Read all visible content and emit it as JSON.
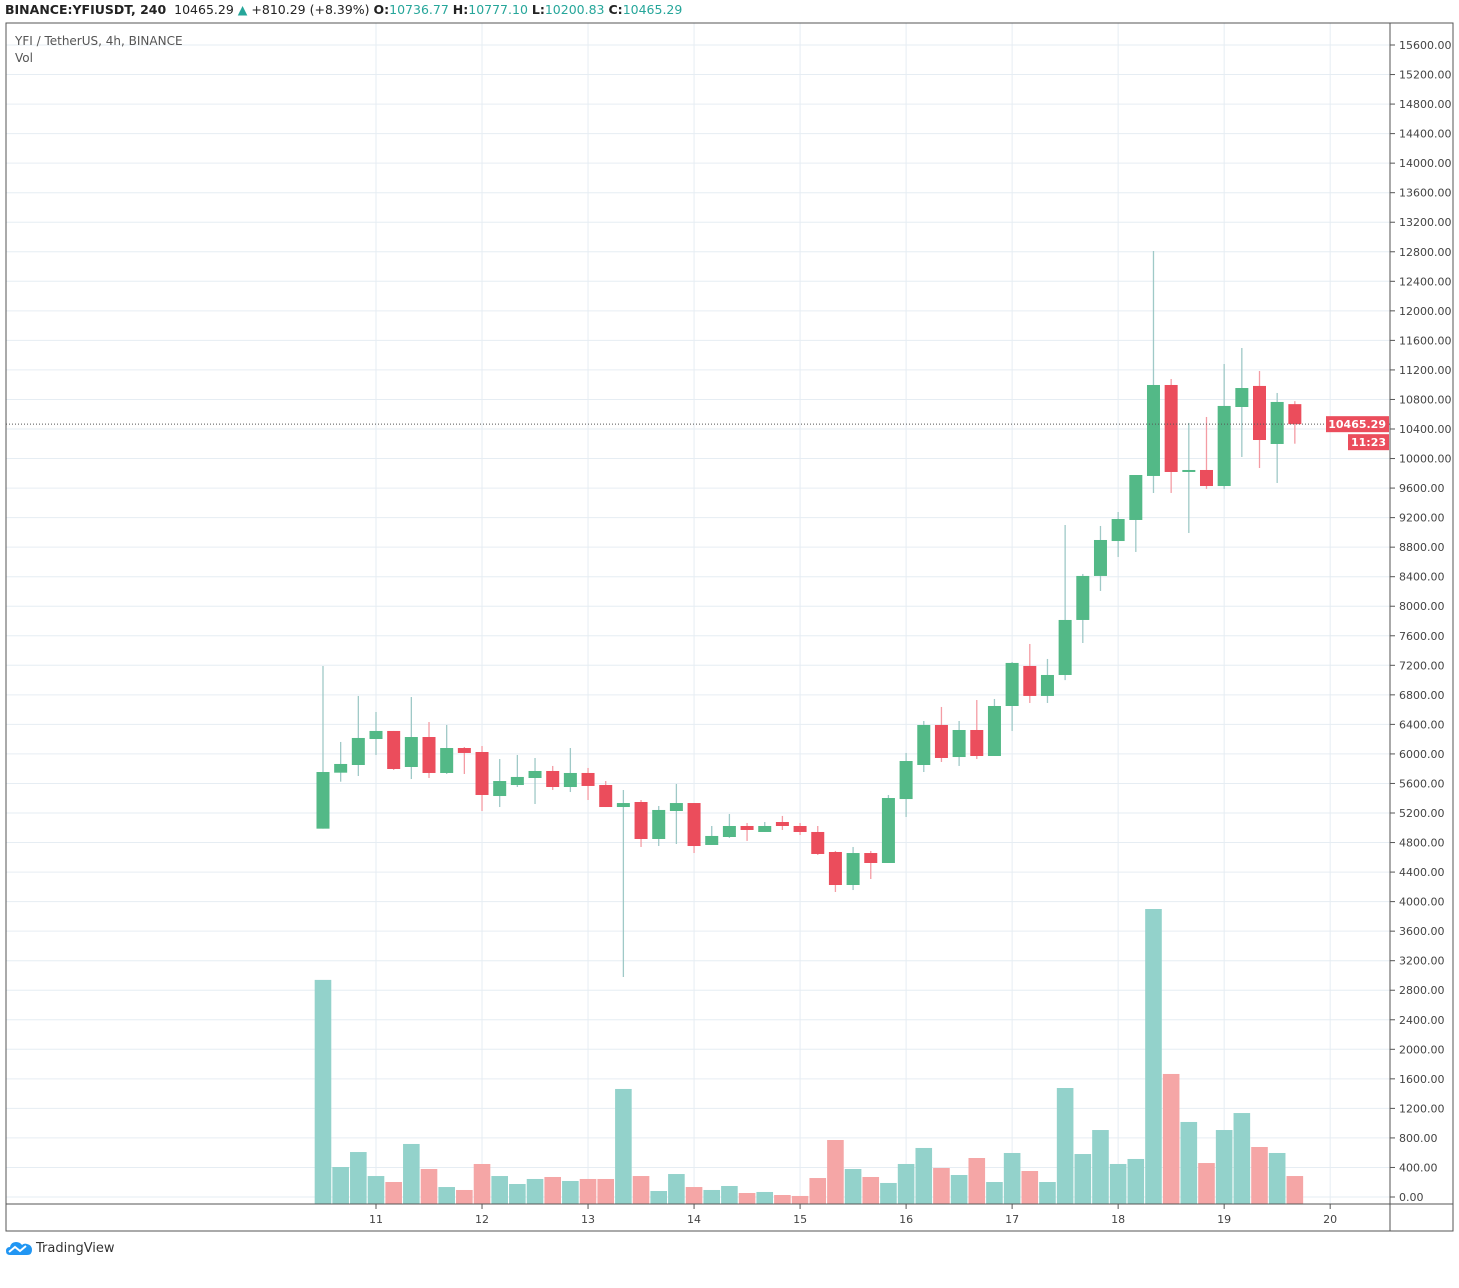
{
  "header": {
    "symbol": "BINANCE:YFIUSDT, 240",
    "last": "10465.29",
    "change": "+810.29 (+8.39%)",
    "o_label": "O:",
    "o": "10736.77",
    "h_label": "H:",
    "h": "10777.10",
    "l_label": "L:",
    "l": "10200.83",
    "c_label": "C:",
    "c": "10465.29"
  },
  "legend": {
    "title": "YFI / TetherUS, 4h, BINANCE",
    "vol": "Vol"
  },
  "footer": {
    "brand": "TradingView"
  },
  "colors": {
    "up": "#53b987",
    "down": "#eb4d5c",
    "wick_up": "#9fc9c7",
    "wick_down": "#f49ca4",
    "vol_up": "#93d2cb",
    "vol_down": "#f5a6a6",
    "grid": "#e6edf3",
    "last_price": "#eb4d5c"
  },
  "chart_data": {
    "type": "candlestick",
    "interval": "4h",
    "ylim": [
      0,
      15600
    ],
    "y_ticks": [
      "0.00",
      "400.00",
      "800.00",
      "1200.00",
      "1600.00",
      "2000.00",
      "2400.00",
      "2800.00",
      "3200.00",
      "3600.00",
      "4000.00",
      "4400.00",
      "4800.00",
      "5200.00",
      "5600.00",
      "6000.00",
      "6400.00",
      "6800.00",
      "7200.00",
      "7600.00",
      "8000.00",
      "8400.00",
      "8800.00",
      "9200.00",
      "9600.00",
      "10000.00",
      "10400.00",
      "10800.00",
      "11200.00",
      "11600.00",
      "12000.00",
      "12400.00",
      "12800.00",
      "13200.00",
      "13600.00",
      "14000.00",
      "14400.00",
      "14800.00",
      "15200.00",
      "15600.00"
    ],
    "x_ticks": [
      "11",
      "12",
      "13",
      "14",
      "15",
      "16",
      "17",
      "18",
      "19",
      "20"
    ],
    "last_price_label": "10465.29",
    "countdown": "11:23",
    "grid": true,
    "ohlc": [
      [
        4988,
        7190,
        4988,
        5755
      ],
      [
        5746,
        6162,
        5624,
        5864
      ],
      [
        5850,
        6785,
        5701,
        6216
      ],
      [
        6202,
        6568,
        5986,
        6311
      ],
      [
        6311,
        6311,
        5782,
        5796
      ],
      [
        5823,
        6771,
        5660,
        6229
      ],
      [
        6229,
        6432,
        5674,
        5742
      ],
      [
        5742,
        6392,
        5728,
        6080
      ],
      [
        6080,
        6094,
        5728,
        6013
      ],
      [
        6026,
        6107,
        5227,
        5444
      ],
      [
        5430,
        5931,
        5281,
        5633
      ],
      [
        5579,
        5986,
        5552,
        5688
      ],
      [
        5674,
        5945,
        5322,
        5769
      ],
      [
        5769,
        5837,
        5512,
        5552
      ],
      [
        5552,
        6080,
        5484,
        5742
      ],
      [
        5742,
        5810,
        5376,
        5566
      ],
      [
        5579,
        5633,
        5281,
        5281
      ],
      [
        5281,
        5512,
        2979,
        5335
      ],
      [
        5349,
        5376,
        4740,
        4848
      ],
      [
        4848,
        5295,
        4753,
        5241
      ],
      [
        5227,
        5593,
        4780,
        5335
      ],
      [
        5335,
        5335,
        4658,
        4753
      ],
      [
        4767,
        5024,
        4767,
        4889
      ],
      [
        4875,
        5187,
        4862,
        5024
      ],
      [
        5024,
        5065,
        4822,
        4970
      ],
      [
        4943,
        5078,
        4943,
        5024
      ],
      [
        5078,
        5160,
        4970,
        5024
      ],
      [
        5024,
        5065,
        4902,
        4943
      ],
      [
        4943,
        5024,
        4631,
        4645
      ],
      [
        4672,
        4686,
        4130,
        4225
      ],
      [
        4225,
        4740,
        4157,
        4658
      ],
      [
        4658,
        4686,
        4306,
        4523
      ],
      [
        4523,
        5444,
        4523,
        5403
      ],
      [
        5389,
        6013,
        5146,
        5904
      ],
      [
        5850,
        6446,
        5755,
        6392
      ],
      [
        6392,
        6636,
        5891,
        5945
      ],
      [
        5958,
        6446,
        5837,
        6324
      ],
      [
        6324,
        6730,
        5931,
        5972
      ],
      [
        5972,
        6744,
        5972,
        6649
      ],
      [
        6649,
        7245,
        6311,
        7232
      ],
      [
        7191,
        7489,
        6690,
        6785
      ],
      [
        6785,
        7286,
        6690,
        7069
      ],
      [
        7069,
        9100,
        7000,
        7814
      ],
      [
        7814,
        8437,
        7502,
        8410
      ],
      [
        8410,
        9087,
        8207,
        8897
      ],
      [
        8883,
        9276,
        8667,
        9181
      ],
      [
        9168,
        9777,
        8735,
        9777
      ],
      [
        9764,
        12810,
        9534,
        10996
      ],
      [
        10996,
        11077,
        9534,
        9818
      ],
      [
        9818,
        10482,
        8992,
        9845
      ],
      [
        9845,
        10563,
        9588,
        9628
      ],
      [
        9628,
        11280,
        9588,
        10712
      ],
      [
        10698,
        11497,
        10021,
        10955
      ],
      [
        10983,
        11185,
        9872,
        10251
      ],
      [
        10197,
        10888,
        9669,
        10766
      ],
      [
        10736.77,
        10777.1,
        10200.83,
        10465.29
      ]
    ],
    "volume": [
      2940,
      406,
      609,
      284,
      203,
      718,
      379,
      135,
      95,
      447,
      284,
      176,
      244,
      271,
      217,
      244,
      244,
      1463,
      284,
      81,
      311,
      135,
      95,
      149,
      54,
      68,
      27,
      14,
      257,
      772,
      379,
      271,
      190,
      447,
      664,
      393,
      298,
      528,
      203,
      596,
      352,
      203,
      1476,
      582,
      907,
      447,
      515,
      3900,
      1666,
      1016,
      460,
      907,
      1137,
      677,
      596,
      284
    ]
  }
}
